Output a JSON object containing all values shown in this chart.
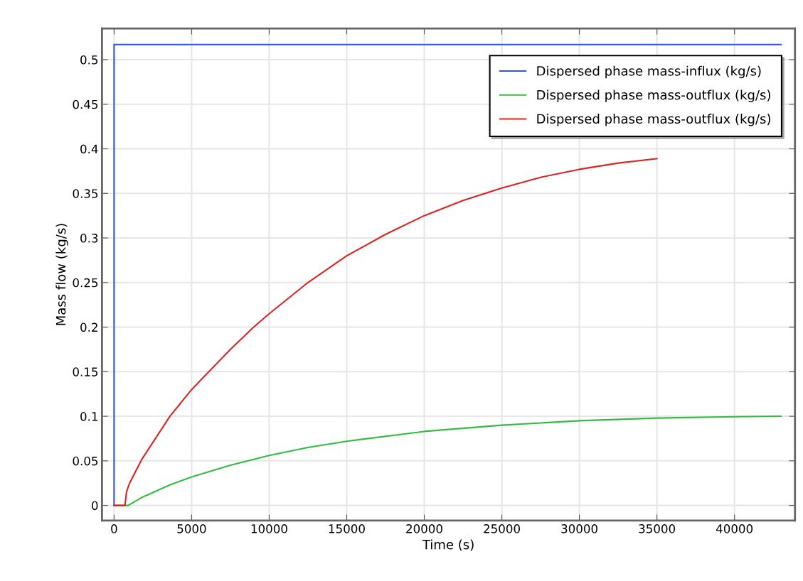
{
  "chart_data": {
    "type": "line",
    "xlabel": "Time (s)",
    "ylabel": "Mass flow (kg/s)",
    "xlim": [
      -780,
      43900
    ],
    "ylim": [
      -0.017,
      0.535
    ],
    "xticks": [
      0,
      5000,
      10000,
      15000,
      20000,
      25000,
      30000,
      35000,
      40000
    ],
    "yticks": [
      0,
      0.05,
      0.1,
      0.15,
      0.2,
      0.25,
      0.3,
      0.35,
      0.4,
      0.45,
      0.5
    ],
    "grid": true,
    "legend": "top right",
    "line_style": "solid",
    "marker": "none",
    "series": [
      {
        "name": "Dispersed phase mass-influx (kg/s)",
        "color": "#3355ee",
        "x": [
          0,
          0,
          43000
        ],
        "values": [
          0,
          0.517,
          0.517
        ]
      },
      {
        "name": "Dispersed phase mass-outflux (kg/s)",
        "color": "#33bb44",
        "x": [
          0,
          900,
          1800,
          3600,
          5000,
          7500,
          10000,
          12500,
          15000,
          20000,
          25000,
          30000,
          35000,
          40000,
          43000
        ],
        "values": [
          0,
          0,
          0.009,
          0.023,
          0.032,
          0.045,
          0.056,
          0.065,
          0.072,
          0.083,
          0.09,
          0.095,
          0.098,
          0.0995,
          0.1
        ]
      },
      {
        "name": "Dispersed phase mass-outflux (kg/s)",
        "color": "#dd2222",
        "x": [
          0,
          700,
          800,
          1000,
          1800,
          3600,
          5000,
          7500,
          9000,
          10000,
          12500,
          15000,
          17500,
          20000,
          22500,
          25000,
          27500,
          30000,
          32500,
          35000
        ],
        "values": [
          0,
          0,
          0.015,
          0.025,
          0.052,
          0.1,
          0.13,
          0.175,
          0.2,
          0.215,
          0.25,
          0.28,
          0.304,
          0.325,
          0.342,
          0.356,
          0.368,
          0.377,
          0.384,
          0.389
        ]
      }
    ]
  }
}
